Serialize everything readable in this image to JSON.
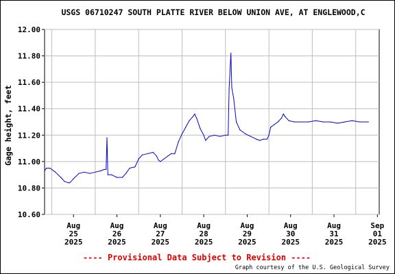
{
  "chart_data": {
    "type": "line",
    "title": "USGS 06710247 SOUTH PLATTE RIVER BELOW UNION AVE, AT ENGLEWOOD,C",
    "ylabel": "Gage height, feet",
    "xlabel": "",
    "ylim": [
      10.6,
      12.0
    ],
    "yticks": [
      "12.00",
      "11.80",
      "11.60",
      "11.40",
      "11.20",
      "11.00",
      "10.80",
      "10.60"
    ],
    "xlim": [
      "2025-08-24T20:00",
      "2025-09-01T13:00"
    ],
    "xticks": [
      {
        "month": "Aug",
        "day": "25",
        "year": "2025"
      },
      {
        "month": "Aug",
        "day": "26",
        "year": "2025"
      },
      {
        "month": "Aug",
        "day": "27",
        "year": "2025"
      },
      {
        "month": "Aug",
        "day": "28",
        "year": "2025"
      },
      {
        "month": "Aug",
        "day": "29",
        "year": "2025"
      },
      {
        "month": "Aug",
        "day": "30",
        "year": "2025"
      },
      {
        "month": "Aug",
        "day": "31",
        "year": "2025"
      },
      {
        "month": "Sep",
        "day": "01",
        "year": "2025"
      }
    ],
    "grid": true,
    "series": [
      {
        "color": "#0000cc",
        "points": [
          [
            "2025-08-24T20:00",
            10.93
          ],
          [
            "2025-08-24T21:00",
            10.95
          ],
          [
            "2025-08-24T23:00",
            10.95
          ],
          [
            "2025-08-25T02:00",
            10.92
          ],
          [
            "2025-08-25T05:00",
            10.88
          ],
          [
            "2025-08-25T07:00",
            10.85
          ],
          [
            "2025-08-25T09:00",
            10.84
          ],
          [
            "2025-08-25T10:00",
            10.84
          ],
          [
            "2025-08-25T12:00",
            10.87
          ],
          [
            "2025-08-25T15:00",
            10.91
          ],
          [
            "2025-08-25T18:00",
            10.92
          ],
          [
            "2025-08-25T21:00",
            10.91
          ],
          [
            "2025-08-26T00:00",
            10.92
          ],
          [
            "2025-08-26T03:00",
            10.93
          ],
          [
            "2025-08-26T05:00",
            10.94
          ],
          [
            "2025-08-26T06:00",
            10.94
          ],
          [
            "2025-08-26T06:30",
            11.18
          ],
          [
            "2025-08-26T07:00",
            10.9
          ],
          [
            "2025-08-26T09:00",
            10.9
          ],
          [
            "2025-08-26T12:00",
            10.88
          ],
          [
            "2025-08-26T15:00",
            10.88
          ],
          [
            "2025-08-26T17:00",
            10.91
          ],
          [
            "2025-08-26T19:00",
            10.95
          ],
          [
            "2025-08-26T22:00",
            10.96
          ],
          [
            "2025-08-27T00:00",
            11.02
          ],
          [
            "2025-08-27T02:00",
            11.05
          ],
          [
            "2025-08-27T05:00",
            11.06
          ],
          [
            "2025-08-27T08:00",
            11.07
          ],
          [
            "2025-08-27T10:00",
            11.04
          ],
          [
            "2025-08-27T11:00",
            11.01
          ],
          [
            "2025-08-27T12:00",
            11.0
          ],
          [
            "2025-08-27T14:00",
            11.02
          ],
          [
            "2025-08-27T16:00",
            11.04
          ],
          [
            "2025-08-27T18:00",
            11.06
          ],
          [
            "2025-08-27T20:00",
            11.06
          ],
          [
            "2025-08-27T22:00",
            11.15
          ],
          [
            "2025-08-28T00:00",
            11.21
          ],
          [
            "2025-08-28T02:00",
            11.26
          ],
          [
            "2025-08-28T04:00",
            11.31
          ],
          [
            "2025-08-28T06:00",
            11.34
          ],
          [
            "2025-08-28T07:00",
            11.36
          ],
          [
            "2025-08-28T08:00",
            11.33
          ],
          [
            "2025-08-28T10:00",
            11.25
          ],
          [
            "2025-08-28T12:00",
            11.2
          ],
          [
            "2025-08-28T13:00",
            11.16
          ],
          [
            "2025-08-28T15:00",
            11.19
          ],
          [
            "2025-08-28T18:00",
            11.2
          ],
          [
            "2025-08-28T21:00",
            11.19
          ],
          [
            "2025-08-29T00:00",
            11.2
          ],
          [
            "2025-08-29T01:30",
            11.2
          ],
          [
            "2025-08-29T02:00",
            11.55
          ],
          [
            "2025-08-29T03:00",
            11.82
          ],
          [
            "2025-08-29T03:30",
            11.56
          ],
          [
            "2025-08-29T04:30",
            11.48
          ],
          [
            "2025-08-29T06:00",
            11.3
          ],
          [
            "2025-08-29T08:00",
            11.24
          ],
          [
            "2025-08-29T11:00",
            11.21
          ],
          [
            "2025-08-29T14:00",
            11.19
          ],
          [
            "2025-08-29T17:00",
            11.17
          ],
          [
            "2025-08-29T19:00",
            11.16
          ],
          [
            "2025-08-29T21:00",
            11.17
          ],
          [
            "2025-08-29T23:00",
            11.17
          ],
          [
            "2025-08-30T00:00",
            11.2
          ],
          [
            "2025-08-30T01:00",
            11.26
          ],
          [
            "2025-08-30T03:00",
            11.28
          ],
          [
            "2025-08-30T05:00",
            11.3
          ],
          [
            "2025-08-30T07:00",
            11.33
          ],
          [
            "2025-08-30T08:00",
            11.36
          ],
          [
            "2025-08-30T09:00",
            11.34
          ],
          [
            "2025-08-30T11:00",
            11.31
          ],
          [
            "2025-08-30T14:00",
            11.3
          ],
          [
            "2025-08-30T18:00",
            11.3
          ],
          [
            "2025-08-30T22:00",
            11.3
          ],
          [
            "2025-08-31T02:00",
            11.31
          ],
          [
            "2025-08-31T06:00",
            11.3
          ],
          [
            "2025-08-31T10:00",
            11.3
          ],
          [
            "2025-08-31T14:00",
            11.29
          ],
          [
            "2025-08-31T18:00",
            11.3
          ],
          [
            "2025-08-31T22:00",
            11.31
          ],
          [
            "2025-09-01T02:00",
            11.3
          ],
          [
            "2025-09-01T07:00",
            11.3
          ]
        ]
      }
    ]
  },
  "footer": {
    "provisional": "---- Provisional Data Subject to Revision ----",
    "credit": "Graph courtesy of the U.S. Geological Survey"
  }
}
